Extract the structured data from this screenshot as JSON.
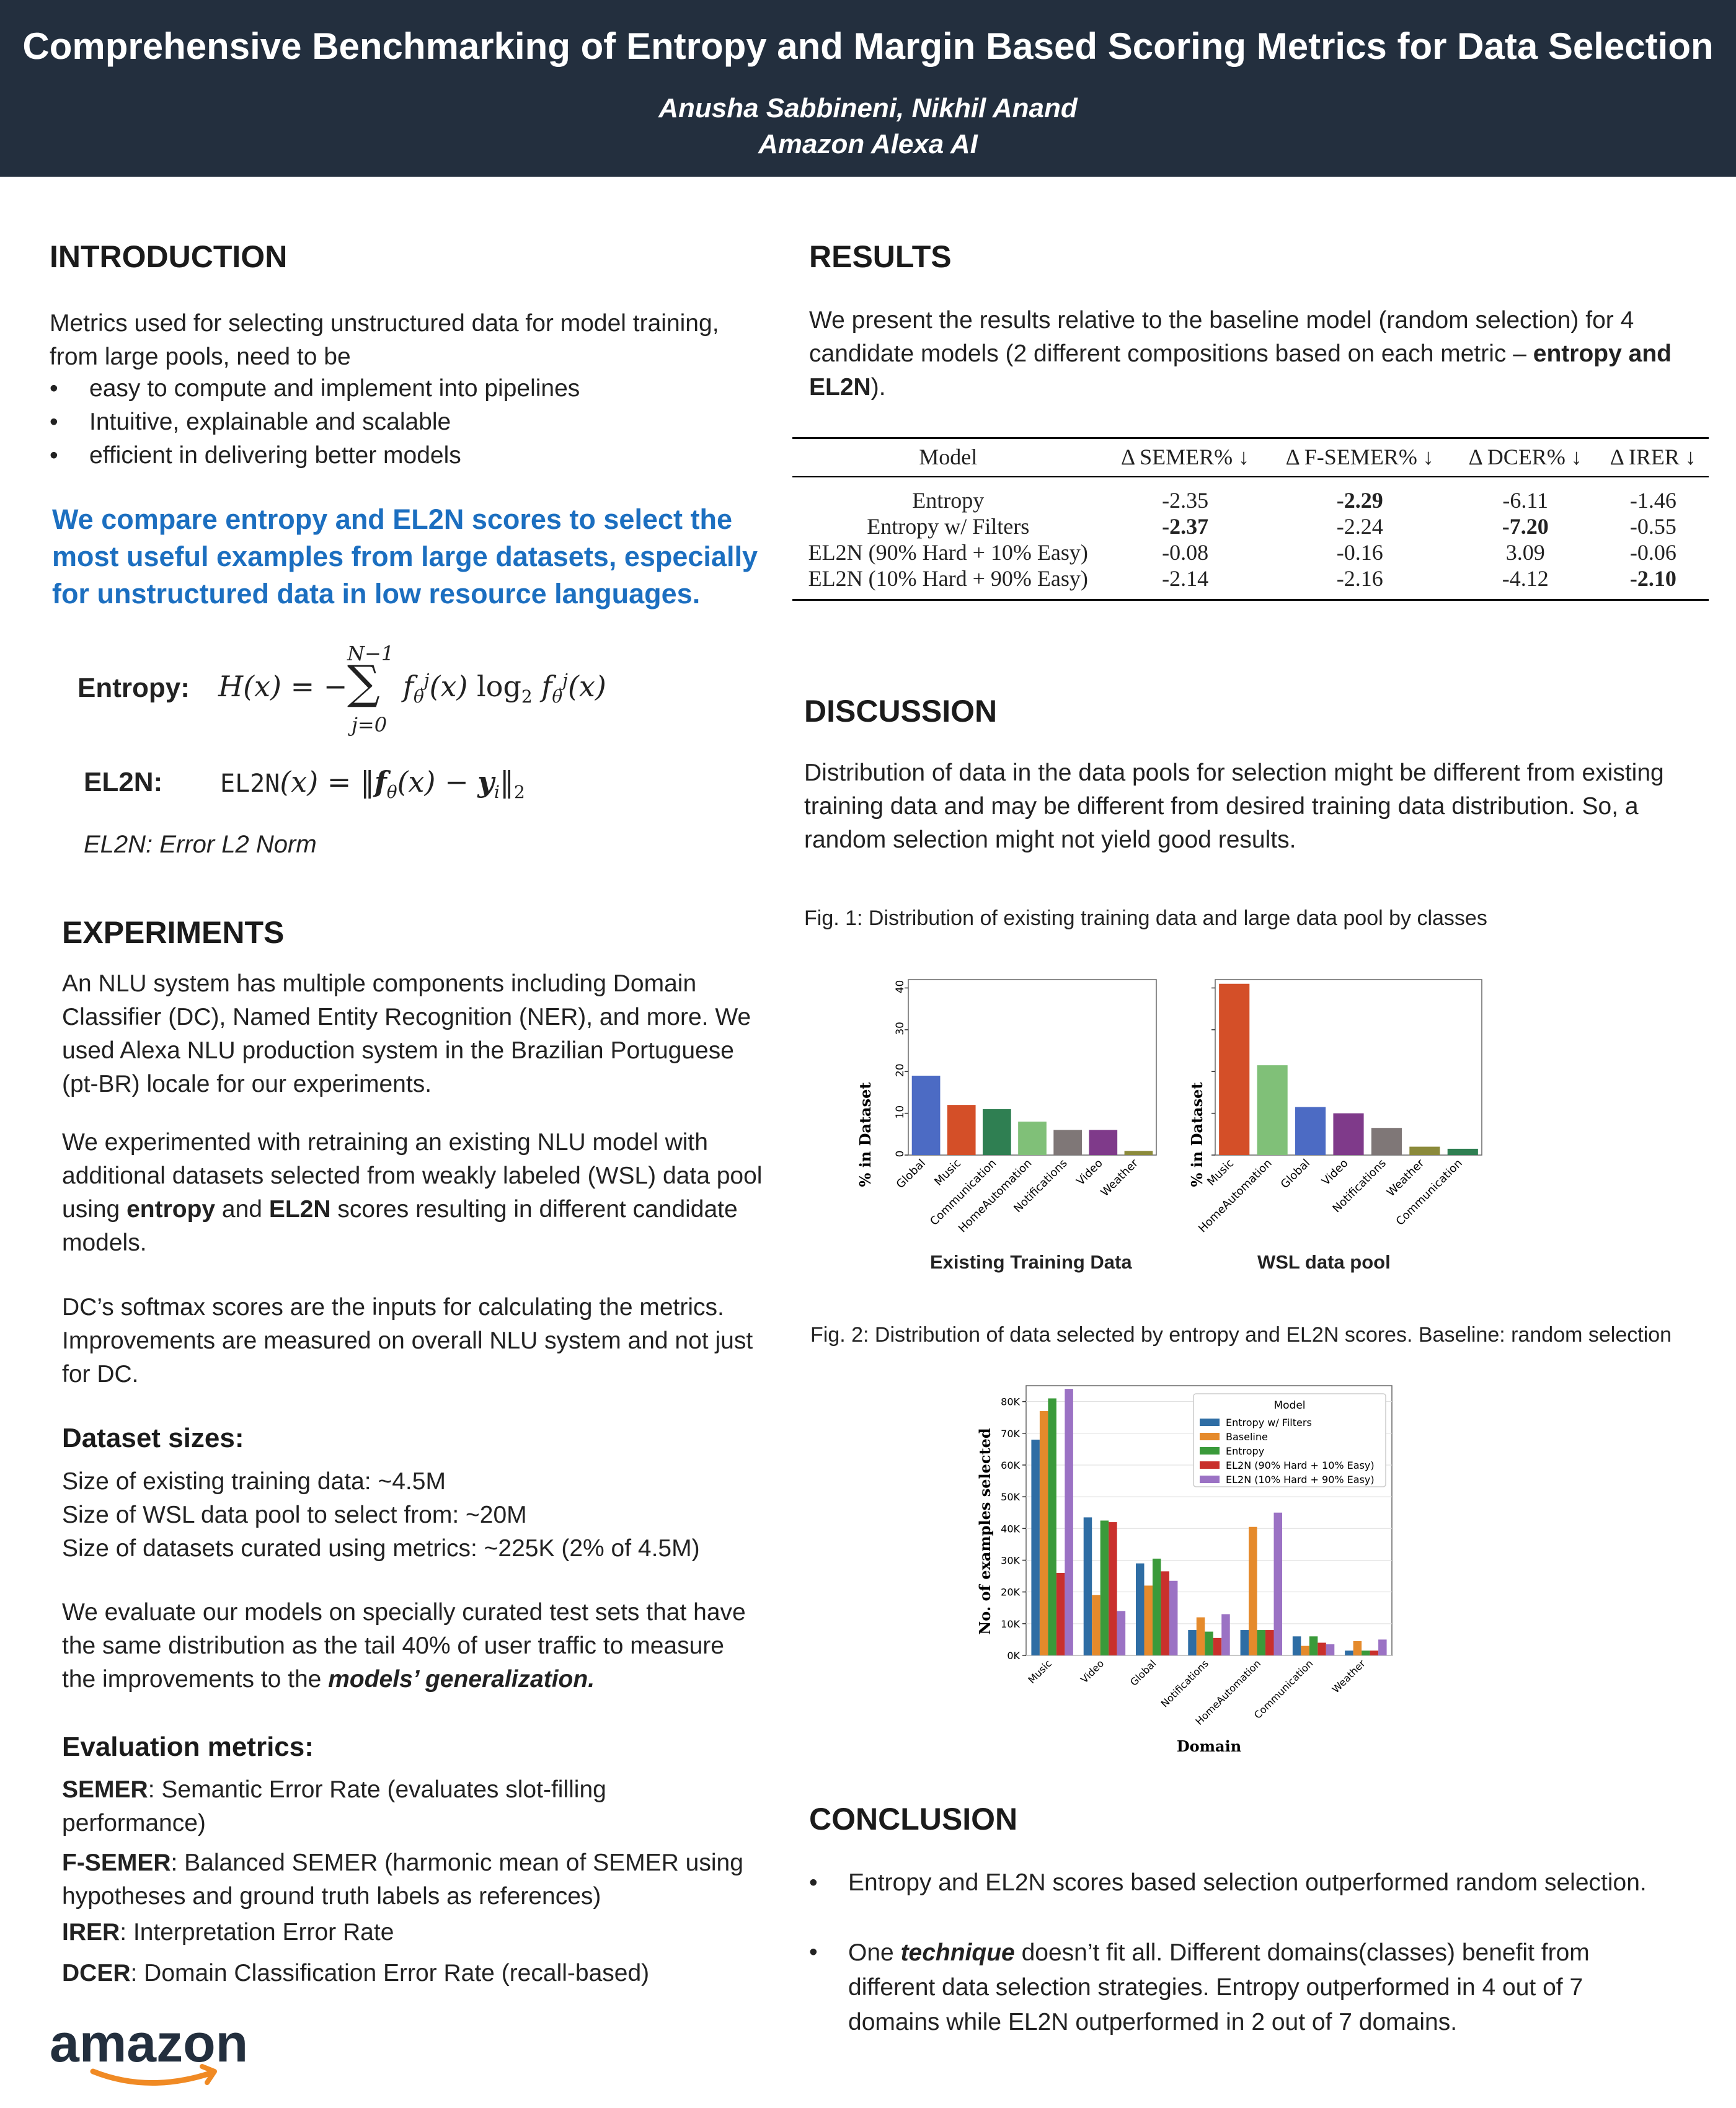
{
  "header": {
    "title": "Comprehensive Benchmarking of Entropy and Margin Based Scoring Metrics for Data Selection",
    "authors": "Anusha Sabbineni, Nikhil Anand",
    "affiliation": "Amazon Alexa AI"
  },
  "intro": {
    "heading": "INTRODUCTION",
    "text": "Metrics used for selecting unstructured data for model training, from large pools, need to be",
    "bullets": [
      "easy to compute and implement into pipelines",
      "Intuitive, explainable and scalable",
      "efficient in delivering better models"
    ],
    "highlight": "We compare entropy and EL2N scores to select the most useful examples from large datasets, especially for unstructured data in low resource languages.",
    "entropy_label": "Entropy:",
    "el2n_label": "EL2N:",
    "el2n_note": "EL2N: Error L2 Norm"
  },
  "experiments": {
    "heading": "EXPERIMENTS",
    "p1": "An NLU system has multiple components including Domain Classifier (DC), Named Entity Recognition (NER), and more. We used Alexa NLU production system in the Brazilian Portuguese (pt-BR) locale for our experiments.",
    "p2_a": "We experimented with retraining an existing NLU model with additional datasets selected from weakly labeled (WSL) data pool using ",
    "p2_b": "entropy",
    "p2_c": " and ",
    "p2_d": "EL2N",
    "p2_e": " scores resulting in different candidate models.",
    "p3": "DC’s softmax scores are the inputs for calculating the metrics. Improvements are measured on overall NLU system and not just for DC.",
    "dataset_heading": "Dataset sizes:",
    "dataset_lines": [
      "Size of existing training data: ~4.5M",
      "Size of WSL data pool to select from: ~20M",
      "Size of datasets curated using metrics: ~225K (2% of 4.5M)"
    ],
    "p4_a": "We evaluate our models on specially curated test sets that have the same distribution as the tail 40% of user traffic to measure the improvements to the ",
    "p4_b": "models’ generalization.",
    "metrics_heading": "Evaluation metrics:",
    "metrics": [
      {
        "name": "SEMER",
        "desc": ": Semantic Error Rate (evaluates slot-filling performance)"
      },
      {
        "name": "F-SEMER",
        "desc": ": Balanced SEMER (harmonic mean of SEMER using hypotheses and ground truth labels as references)"
      },
      {
        "name": "IRER",
        "desc": ": Interpretation Error Rate"
      },
      {
        "name": "DCER",
        "desc": ": Domain Classification Error Rate (recall-based)"
      }
    ]
  },
  "results": {
    "heading": "RESULTS",
    "text_a": "We present the results relative to the baseline model (random selection) for 4 candidate models (2 different compositions based on each metric – ",
    "text_b": "entropy and EL2N",
    "text_c": ").",
    "table": {
      "columns": [
        "Model",
        "Δ SEMER% ↓",
        "Δ F-SEMER% ↓",
        "Δ DCER% ↓",
        "Δ IRER ↓"
      ],
      "rows": [
        {
          "cells": [
            "Entropy",
            "-2.35",
            "-2.29",
            "-6.11",
            "-1.46"
          ],
          "bold": [
            2
          ]
        },
        {
          "cells": [
            "Entropy w/ Filters",
            "-2.37",
            "-2.24",
            "-7.20",
            "-0.55"
          ],
          "bold": [
            1,
            3
          ]
        },
        {
          "cells": [
            "EL2N (90% Hard + 10% Easy)",
            "-0.08",
            "-0.16",
            "3.09",
            "-0.06"
          ],
          "bold": []
        },
        {
          "cells": [
            "EL2N (10% Hard + 90% Easy)",
            "-2.14",
            "-2.16",
            "-4.12",
            "-2.10"
          ],
          "bold": [
            4
          ]
        }
      ]
    }
  },
  "discussion": {
    "heading": "DISCUSSION",
    "text": "Distribution of data in the data pools for selection might be different from existing training data and may be different from desired training data distribution. So, a random selection might not yield good results.",
    "fig1_caption": "Fig. 1: Distribution of existing training data and large data pool by classes",
    "fig2_caption": "Fig. 2: Distribution of data selected by entropy and EL2N scores. Baseline: random selection"
  },
  "conclusion": {
    "heading": "CONCLUSION",
    "bullet1": "Entropy and EL2N scores based selection outperformed random selection.",
    "bullet2_a": "One ",
    "bullet2_b": "technique",
    "bullet2_c": " doesn’t fit all. Different domains(classes) benefit from different data selection strategies. Entropy outperformed in 4 out of 7 domains while EL2N outperformed in 2 out of 7 domains."
  },
  "logo_text": "amazon",
  "chart_data": [
    {
      "type": "bar",
      "title": "Existing Training Data",
      "ylabel": "% in Dataset",
      "ylim": [
        0,
        42
      ],
      "yticks": [
        0,
        10,
        20,
        30,
        40
      ],
      "categories": [
        "Global",
        "Music",
        "Communication",
        "HomeAutomation",
        "Notifications",
        "Video",
        "Weather"
      ],
      "values": [
        19,
        12,
        11,
        8,
        6,
        6,
        1
      ],
      "colors": [
        "#4c6bc4",
        "#d44f28",
        "#2f7f52",
        "#80c078",
        "#7f7777",
        "#7f3a8a",
        "#8b8a3b"
      ]
    },
    {
      "type": "bar",
      "title": "WSL data pool",
      "ylabel": "% in Dataset",
      "ylim": [
        0,
        42
      ],
      "categories": [
        "Music",
        "HomeAutomation",
        "Global",
        "Video",
        "Notifications",
        "Weather",
        "Communication"
      ],
      "values": [
        41,
        21.5,
        11.5,
        10,
        6.5,
        2,
        1.5
      ],
      "colors": [
        "#d44f28",
        "#80c078",
        "#4c6bc4",
        "#7f3a8a",
        "#7f7777",
        "#8b8a3b",
        "#2f7f52"
      ]
    },
    {
      "type": "bar",
      "xlabel": "Domain",
      "ylabel": "No. of examples selected",
      "ylim": [
        0,
        85000
      ],
      "yticks": [
        "0K",
        "10K",
        "20K",
        "30K",
        "40K",
        "50K",
        "60K",
        "70K",
        "80K"
      ],
      "legend_title": "Model",
      "legend_placement": "top-right",
      "categories": [
        "Music",
        "Video",
        "Global",
        "Notifications",
        "HomeAutomation",
        "Communication",
        "Weather"
      ],
      "series": [
        {
          "name": "Entropy w/ Filters",
          "color": "#2e6da4",
          "values": [
            68000,
            43500,
            29000,
            8000,
            8000,
            6000,
            1500
          ]
        },
        {
          "name": "Baseline",
          "color": "#e58a2b",
          "values": [
            77000,
            19000,
            22000,
            12000,
            40500,
            3000,
            4500
          ]
        },
        {
          "name": "Entropy",
          "color": "#3a9a3a",
          "values": [
            81000,
            42500,
            30500,
            7500,
            8000,
            6000,
            1500
          ]
        },
        {
          "name": "EL2N (90% Hard + 10% Easy)",
          "color": "#c9302c",
          "values": [
            26000,
            42000,
            26500,
            5500,
            8000,
            4000,
            1500
          ]
        },
        {
          "name": "EL2N (10% Hard + 90% Easy)",
          "color": "#9b72c4",
          "values": [
            84000,
            14000,
            23500,
            13000,
            45000,
            3500,
            5000
          ]
        }
      ]
    }
  ]
}
